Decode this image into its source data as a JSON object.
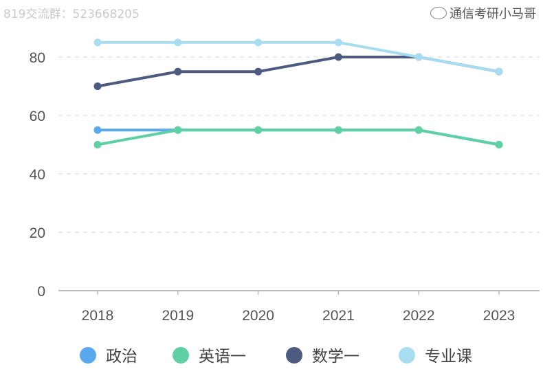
{
  "watermark_top": "819交流群：523668205",
  "watermark_bottom": "通信考研小马哥",
  "chart_data": {
    "type": "line",
    "categories": [
      "2018",
      "2019",
      "2020",
      "2021",
      "2022",
      "2023"
    ],
    "ylim": [
      0,
      90
    ],
    "yticks": [
      0,
      20,
      40,
      60,
      80
    ],
    "grid": true,
    "legend_position": "bottom",
    "series": [
      {
        "name": "政治",
        "color": "#5aa8ee",
        "values": [
          55,
          55,
          55,
          55,
          55,
          50
        ]
      },
      {
        "name": "英语一",
        "color": "#5fd0a5",
        "values": [
          50,
          55,
          55,
          55,
          55,
          50
        ]
      },
      {
        "name": "数学一",
        "color": "#4d5b80",
        "values": [
          70,
          75,
          75,
          80,
          80,
          75
        ]
      },
      {
        "name": "专业课",
        "color": "#a8dcf0",
        "values": [
          85,
          85,
          85,
          85,
          80,
          75
        ]
      }
    ]
  }
}
